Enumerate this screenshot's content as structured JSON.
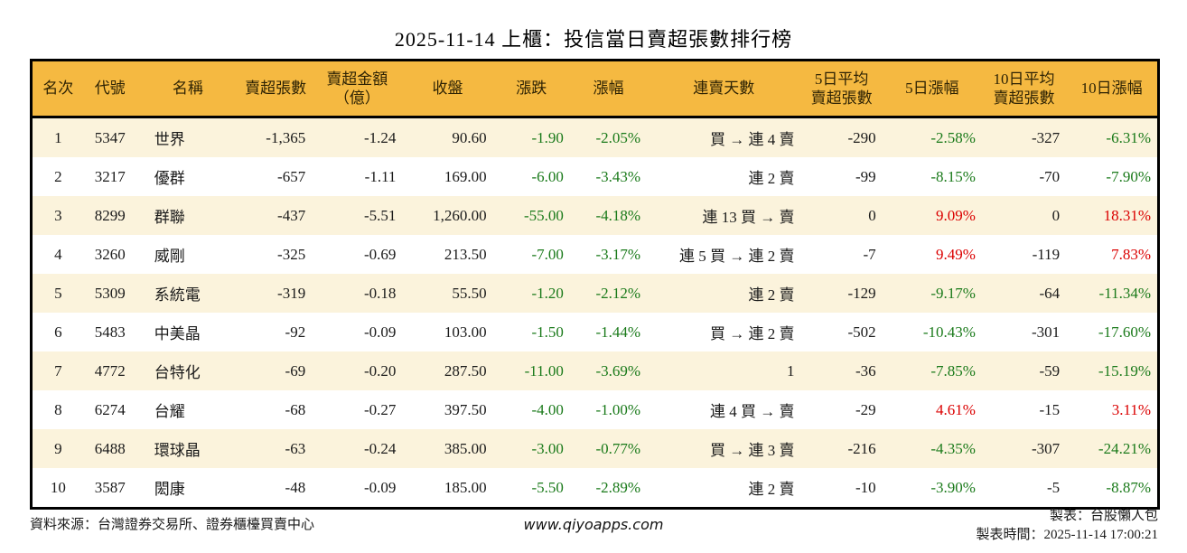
{
  "title": "2025-11-14 上櫃：投信當日賣超張數排行榜",
  "colors": {
    "header_bg": "#F5B941",
    "header_text": "#2e2304",
    "row_alt": "#FBF3DC",
    "green": "#1A7A1A",
    "red": "#DB0000",
    "border": "#000000"
  },
  "table": {
    "columns": [
      {
        "key": "rank",
        "label": "名次"
      },
      {
        "key": "code",
        "label": "代號"
      },
      {
        "key": "name",
        "label": "名稱"
      },
      {
        "key": "sell_shares",
        "label": "賣超張數"
      },
      {
        "key": "sell_amount",
        "label": "賣超金額\n（億）"
      },
      {
        "key": "close",
        "label": "收盤"
      },
      {
        "key": "change",
        "label": "漲跌"
      },
      {
        "key": "change_pct",
        "label": "漲幅"
      },
      {
        "key": "streak",
        "label": "連賣天數"
      },
      {
        "key": "avg5",
        "label": "5日平均\n賣超張數"
      },
      {
        "key": "pct5",
        "label": "5日漲幅"
      },
      {
        "key": "avg10",
        "label": "10日平均\n賣超張數"
      },
      {
        "key": "pct10",
        "label": "10日漲幅"
      }
    ],
    "rows": [
      {
        "rank": "1",
        "code": "5347",
        "name": "世界",
        "sell_shares": "-1,365",
        "sell_amount": "-1.24",
        "close": "90.60",
        "change": {
          "v": "-1.90",
          "c": "green"
        },
        "change_pct": {
          "v": "-2.05%",
          "c": "green"
        },
        "streak": "買 → 連 4 賣",
        "avg5": "-290",
        "pct5": {
          "v": "-2.58%",
          "c": "green"
        },
        "avg10": "-327",
        "pct10": {
          "v": "-6.31%",
          "c": "green"
        }
      },
      {
        "rank": "2",
        "code": "3217",
        "name": "優群",
        "sell_shares": "-657",
        "sell_amount": "-1.11",
        "close": "169.00",
        "change": {
          "v": "-6.00",
          "c": "green"
        },
        "change_pct": {
          "v": "-3.43%",
          "c": "green"
        },
        "streak": "連 2 賣",
        "avg5": "-99",
        "pct5": {
          "v": "-8.15%",
          "c": "green"
        },
        "avg10": "-70",
        "pct10": {
          "v": "-7.90%",
          "c": "green"
        }
      },
      {
        "rank": "3",
        "code": "8299",
        "name": "群聯",
        "sell_shares": "-437",
        "sell_amount": "-5.51",
        "close": "1,260.00",
        "change": {
          "v": "-55.00",
          "c": "green"
        },
        "change_pct": {
          "v": "-4.18%",
          "c": "green"
        },
        "streak": "連 13 買 → 賣",
        "avg5": "0",
        "pct5": {
          "v": "9.09%",
          "c": "red"
        },
        "avg10": "0",
        "pct10": {
          "v": "18.31%",
          "c": "red"
        }
      },
      {
        "rank": "4",
        "code": "3260",
        "name": "威剛",
        "sell_shares": "-325",
        "sell_amount": "-0.69",
        "close": "213.50",
        "change": {
          "v": "-7.00",
          "c": "green"
        },
        "change_pct": {
          "v": "-3.17%",
          "c": "green"
        },
        "streak": "連 5 買 → 連 2 賣",
        "avg5": "-7",
        "pct5": {
          "v": "9.49%",
          "c": "red"
        },
        "avg10": "-119",
        "pct10": {
          "v": "7.83%",
          "c": "red"
        }
      },
      {
        "rank": "5",
        "code": "5309",
        "name": "系統電",
        "sell_shares": "-319",
        "sell_amount": "-0.18",
        "close": "55.50",
        "change": {
          "v": "-1.20",
          "c": "green"
        },
        "change_pct": {
          "v": "-2.12%",
          "c": "green"
        },
        "streak": "連 2 賣",
        "avg5": "-129",
        "pct5": {
          "v": "-9.17%",
          "c": "green"
        },
        "avg10": "-64",
        "pct10": {
          "v": "-11.34%",
          "c": "green"
        }
      },
      {
        "rank": "6",
        "code": "5483",
        "name": "中美晶",
        "sell_shares": "-92",
        "sell_amount": "-0.09",
        "close": "103.00",
        "change": {
          "v": "-1.50",
          "c": "green"
        },
        "change_pct": {
          "v": "-1.44%",
          "c": "green"
        },
        "streak": "買 → 連 2 賣",
        "avg5": "-502",
        "pct5": {
          "v": "-10.43%",
          "c": "green"
        },
        "avg10": "-301",
        "pct10": {
          "v": "-17.60%",
          "c": "green"
        }
      },
      {
        "rank": "7",
        "code": "4772",
        "name": "台特化",
        "sell_shares": "-69",
        "sell_amount": "-0.20",
        "close": "287.50",
        "change": {
          "v": "-11.00",
          "c": "green"
        },
        "change_pct": {
          "v": "-3.69%",
          "c": "green"
        },
        "streak": "1",
        "avg5": "-36",
        "pct5": {
          "v": "-7.85%",
          "c": "green"
        },
        "avg10": "-59",
        "pct10": {
          "v": "-15.19%",
          "c": "green"
        }
      },
      {
        "rank": "8",
        "code": "6274",
        "name": "台耀",
        "sell_shares": "-68",
        "sell_amount": "-0.27",
        "close": "397.50",
        "change": {
          "v": "-4.00",
          "c": "green"
        },
        "change_pct": {
          "v": "-1.00%",
          "c": "green"
        },
        "streak": "連 4 買 → 賣",
        "avg5": "-29",
        "pct5": {
          "v": "4.61%",
          "c": "red"
        },
        "avg10": "-15",
        "pct10": {
          "v": "3.11%",
          "c": "red"
        }
      },
      {
        "rank": "9",
        "code": "6488",
        "name": "環球晶",
        "sell_shares": "-63",
        "sell_amount": "-0.24",
        "close": "385.00",
        "change": {
          "v": "-3.00",
          "c": "green"
        },
        "change_pct": {
          "v": "-0.77%",
          "c": "green"
        },
        "streak": "買 → 連 3 賣",
        "avg5": "-216",
        "pct5": {
          "v": "-4.35%",
          "c": "green"
        },
        "avg10": "-307",
        "pct10": {
          "v": "-24.21%",
          "c": "green"
        }
      },
      {
        "rank": "10",
        "code": "3587",
        "name": "閎康",
        "sell_shares": "-48",
        "sell_amount": "-0.09",
        "close": "185.00",
        "change": {
          "v": "-5.50",
          "c": "green"
        },
        "change_pct": {
          "v": "-2.89%",
          "c": "green"
        },
        "streak": "連 2 賣",
        "avg5": "-10",
        "pct5": {
          "v": "-3.90%",
          "c": "green"
        },
        "avg10": "-5",
        "pct10": {
          "v": "-8.87%",
          "c": "green"
        }
      }
    ]
  },
  "footer": {
    "source": "資料來源：台灣證券交易所、證券櫃檯買賣中心",
    "website": "www.qiyoapps.com",
    "maker": "製表：台股懶人包",
    "timestamp": "製表時間：2025-11-14 17:00:21"
  }
}
